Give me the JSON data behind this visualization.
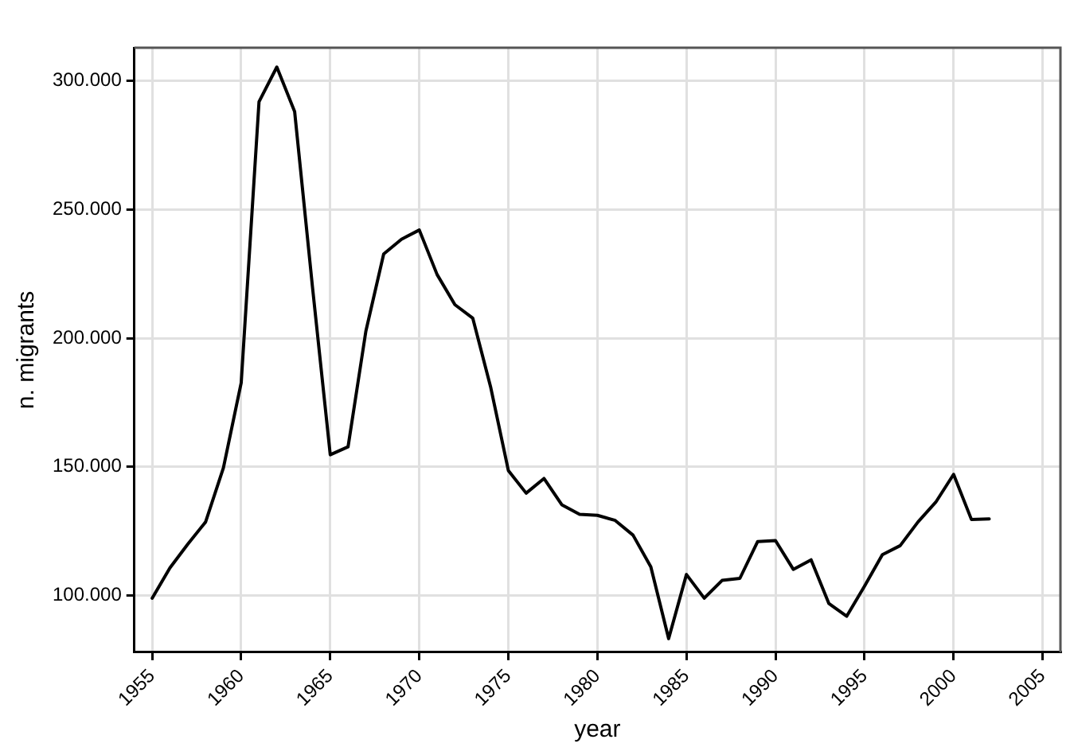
{
  "chart_data": {
    "type": "line",
    "xlabel": "year",
    "ylabel": "n. migrants",
    "x": [
      1955,
      1956,
      1957,
      1958,
      1959,
      1960,
      1961,
      1962,
      1963,
      1964,
      1965,
      1966,
      1967,
      1968,
      1969,
      1970,
      1971,
      1972,
      1973,
      1974,
      1975,
      1976,
      1977,
      1978,
      1979,
      1980,
      1981,
      1982,
      1983,
      1984,
      1985,
      1986,
      1987,
      1988,
      1989,
      1990,
      1991,
      1992,
      1993,
      1994,
      1995,
      1996,
      1997,
      1998,
      1999,
      2000,
      2001,
      2002
    ],
    "series": [
      {
        "color": "#000000",
        "values": [
          99000,
          110800,
          120000,
          128600,
          149600,
          182700,
          291800,
          305300,
          288000,
          220000,
          154700,
          157800,
          202700,
          232700,
          238400,
          242000,
          224700,
          213000,
          207800,
          181200,
          148600,
          139800,
          145500,
          135300,
          131600,
          131200,
          129200,
          123500,
          111200,
          83300,
          108200,
          99000,
          105900,
          106700,
          121000,
          121400,
          110200,
          113900,
          96900,
          92000,
          103700,
          115900,
          119400,
          128600,
          136300,
          147100,
          129600,
          129800
        ]
      }
    ],
    "xlim": [
      1954,
      2006
    ],
    "xticks": [
      1955,
      1960,
      1965,
      1970,
      1975,
      1980,
      1985,
      1990,
      1995,
      2000,
      2005
    ],
    "ylim": [
      78000,
      312800
    ],
    "yticks": [
      {
        "value": 100000,
        "label": "100.000"
      },
      {
        "value": 150000,
        "label": "150.000"
      },
      {
        "value": 200000,
        "label": "200.000"
      },
      {
        "value": 250000,
        "label": "250.000"
      },
      {
        "value": 300000,
        "label": "300.000"
      }
    ],
    "grid": true,
    "legend": false,
    "marker": "none",
    "line_style": "solid"
  }
}
